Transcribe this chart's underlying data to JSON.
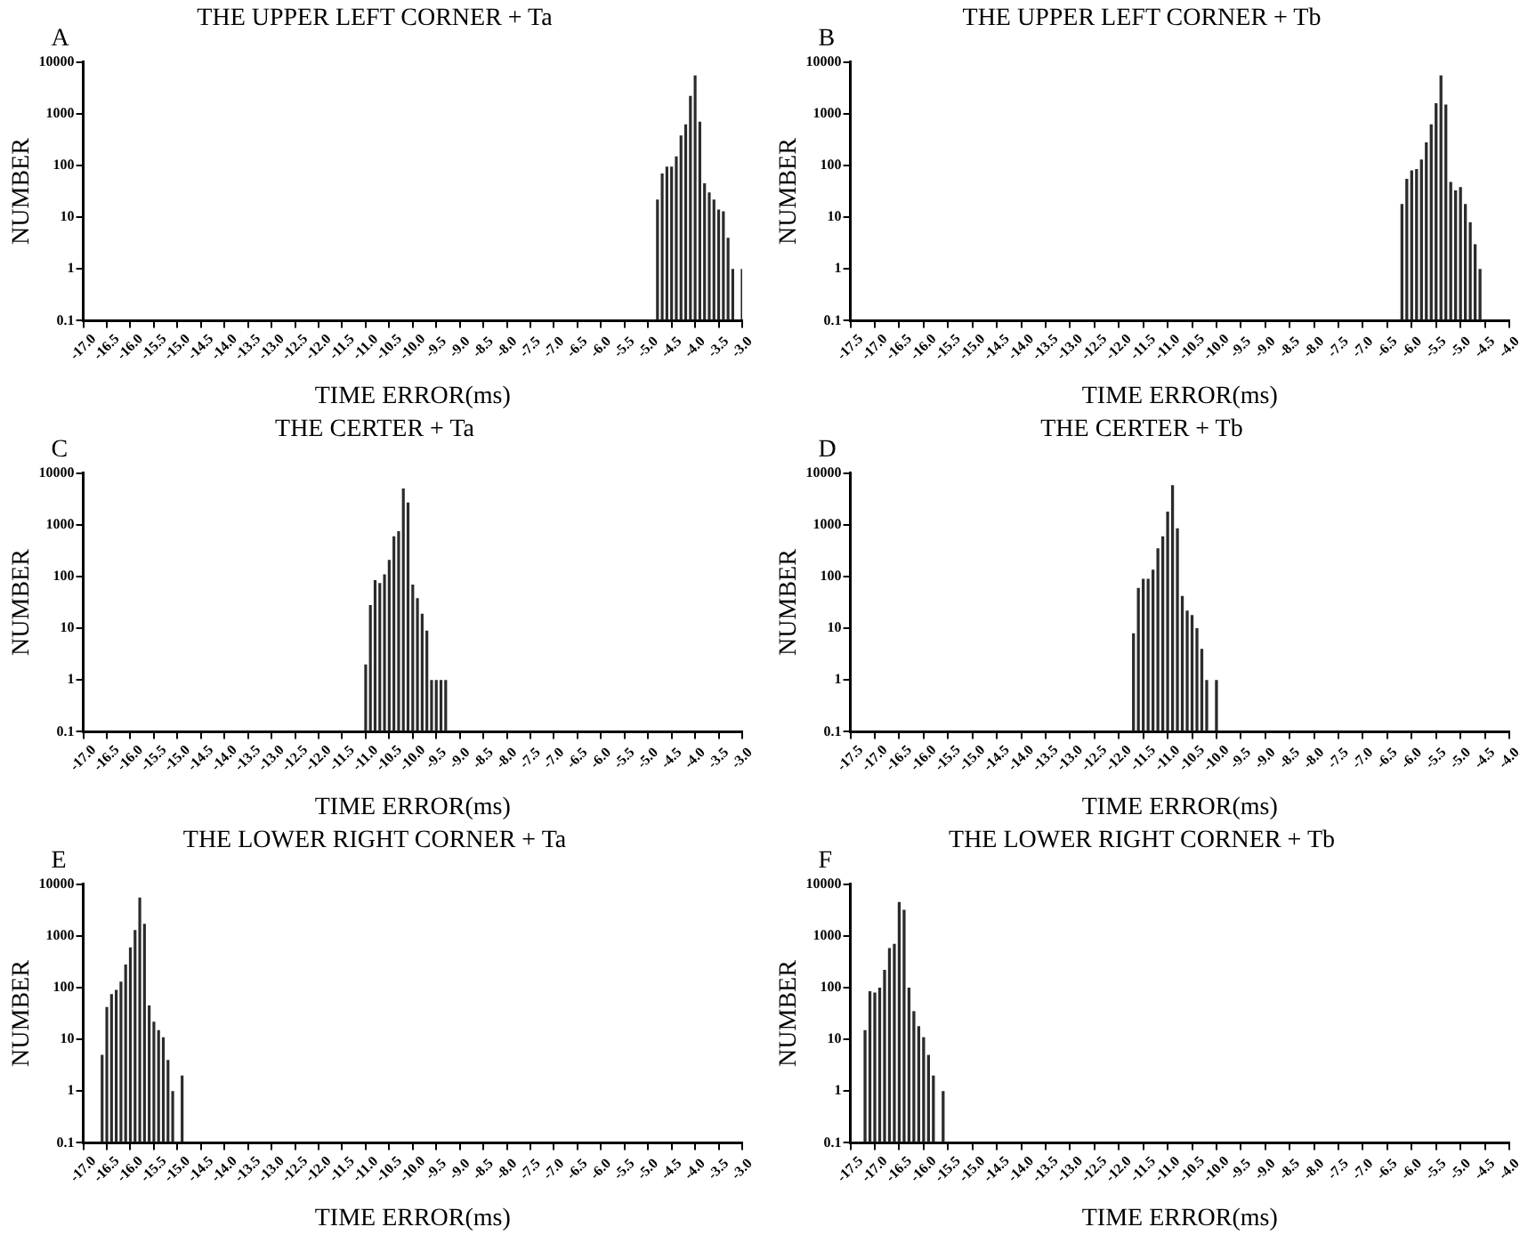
{
  "chart_data": [
    {
      "type": "bar",
      "title": "THE UPPER LEFT CORNER + Ta",
      "xlabel": "TIME ERROR(ms)",
      "ylabel": "NUMBER",
      "annotations": [
        "A"
      ],
      "color": "#2b2b2b",
      "log": "y",
      "grid": false,
      "x": [
        -4.8,
        -4.7,
        -4.6,
        -4.5,
        -4.4,
        -4.3,
        -4.2,
        -4.1,
        -4.0,
        -3.9,
        -3.8,
        -3.7,
        -3.6,
        -3.5,
        -3.4,
        -3.3,
        -3.2,
        -3.0
      ],
      "values": [
        22,
        70,
        95,
        95,
        150,
        380,
        620,
        2200,
        5500,
        700,
        45,
        30,
        22,
        14,
        13,
        4,
        1,
        1
      ],
      "xlim": [
        -17.0,
        -3.0
      ],
      "ylim": [
        0.1,
        10000
      ],
      "yticks": [
        0.1,
        1,
        10,
        100,
        1000,
        10000
      ],
      "xticks": [
        {
          "value": -17,
          "label": "-17.0"
        },
        {
          "value": -16.5,
          "label": "-16.5"
        },
        {
          "value": -16,
          "label": "-16.0"
        },
        {
          "value": -15.5,
          "label": "-15.5"
        },
        {
          "value": -15,
          "label": "-15.0"
        },
        {
          "value": -14.5,
          "label": "-14.5"
        },
        {
          "value": -14,
          "label": "-14.0"
        },
        {
          "value": -13.5,
          "label": "-13.5"
        },
        {
          "value": -13,
          "label": "-13.0"
        },
        {
          "value": -12.5,
          "label": "-12.5"
        },
        {
          "value": -12,
          "label": "-12.0"
        },
        {
          "value": -11.5,
          "label": "-11.5"
        },
        {
          "value": -11,
          "label": "-11.0"
        },
        {
          "value": -10.5,
          "label": "-10.5"
        },
        {
          "value": -10,
          "label": "-10.0"
        },
        {
          "value": -9.5,
          "label": "-9.5"
        },
        {
          "value": -9,
          "label": "-9.0"
        },
        {
          "value": -8.5,
          "label": "-8.5"
        },
        {
          "value": -8,
          "label": "-8.0"
        },
        {
          "value": -7.5,
          "label": "-7.5"
        },
        {
          "value": -7,
          "label": "-7.0"
        },
        {
          "value": -6.5,
          "label": "-6.5"
        },
        {
          "value": -6,
          "label": "-6.0"
        },
        {
          "value": -5.5,
          "label": "-5.5"
        },
        {
          "value": -5,
          "label": "-5.0"
        },
        {
          "value": -4.5,
          "label": "-4.5"
        },
        {
          "value": -4,
          "label": "-4.0"
        },
        {
          "value": -3.5,
          "label": "-3.5"
        },
        {
          "value": -3,
          "label": "-3.0"
        }
      ]
    },
    {
      "type": "bar",
      "title": "THE UPPER LEFT CORNER + Tb",
      "xlabel": "TIME ERROR(ms)",
      "ylabel": "NUMBER",
      "annotations": [
        "B"
      ],
      "color": "#2b2b2b",
      "log": "y",
      "grid": false,
      "x": [
        -6.2,
        -6.1,
        -6.0,
        -5.9,
        -5.8,
        -5.7,
        -5.6,
        -5.5,
        -5.4,
        -5.3,
        -5.2,
        -5.1,
        -5.0,
        -4.9,
        -4.8,
        -4.7,
        -4.6
      ],
      "values": [
        18,
        55,
        80,
        85,
        130,
        280,
        620,
        1600,
        5500,
        1500,
        48,
        33,
        38,
        18,
        8,
        3,
        1
      ],
      "xlim": [
        -17.5,
        -4.0
      ],
      "ylim": [
        0.1,
        10000
      ],
      "yticks": [
        0.1,
        1,
        10,
        100,
        1000,
        10000
      ],
      "xticks": [
        {
          "value": -17.5,
          "label": "-17.5"
        },
        {
          "value": -17,
          "label": "-17.0"
        },
        {
          "value": -16.5,
          "label": "-16.5"
        },
        {
          "value": -16,
          "label": "-16.0"
        },
        {
          "value": -15.5,
          "label": "-15.5"
        },
        {
          "value": -15,
          "label": "-15.0"
        },
        {
          "value": -14.5,
          "label": "-14.5"
        },
        {
          "value": -14,
          "label": "-14.0"
        },
        {
          "value": -13.5,
          "label": "-13.5"
        },
        {
          "value": -13,
          "label": "-13.0"
        },
        {
          "value": -12.5,
          "label": "-12.5"
        },
        {
          "value": -12,
          "label": "-12.0"
        },
        {
          "value": -11.5,
          "label": "-11.5"
        },
        {
          "value": -11,
          "label": "-11.0"
        },
        {
          "value": -10.5,
          "label": "-10.5"
        },
        {
          "value": -10,
          "label": "-10.0"
        },
        {
          "value": -9.5,
          "label": "-9.5"
        },
        {
          "value": -9,
          "label": "-9.0"
        },
        {
          "value": -8.5,
          "label": "-8.5"
        },
        {
          "value": -8,
          "label": "-8.0"
        },
        {
          "value": -7.5,
          "label": "-7.5"
        },
        {
          "value": -7,
          "label": "-7.0"
        },
        {
          "value": -6.5,
          "label": "-6.5"
        },
        {
          "value": -6,
          "label": "-6.0"
        },
        {
          "value": -5.5,
          "label": "-5.5"
        },
        {
          "value": -5,
          "label": "-5.0"
        },
        {
          "value": -4.5,
          "label": "-4.5"
        },
        {
          "value": -4,
          "label": "-4.0"
        }
      ]
    },
    {
      "type": "bar",
      "title": "THE CERTER + Ta",
      "xlabel": "TIME ERROR(ms)",
      "ylabel": "NUMBER",
      "annotations": [
        "C"
      ],
      "color": "#2b2b2b",
      "log": "y",
      "grid": false,
      "x": [
        -11.0,
        -10.9,
        -10.8,
        -10.7,
        -10.6,
        -10.5,
        -10.4,
        -10.3,
        -10.2,
        -10.1,
        -10.0,
        -9.9,
        -9.8,
        -9.7,
        -9.6,
        -9.5,
        -9.4,
        -9.3
      ],
      "values": [
        2,
        28,
        85,
        75,
        110,
        210,
        600,
        750,
        5000,
        2700,
        70,
        38,
        19,
        9,
        1,
        1,
        1,
        1
      ],
      "xlim": [
        -17.0,
        -3.0
      ],
      "ylim": [
        0.1,
        10000
      ],
      "yticks": [
        0.1,
        1,
        10,
        100,
        1000,
        10000
      ],
      "xticks": [
        {
          "value": -17,
          "label": "-17.0"
        },
        {
          "value": -16.5,
          "label": "-16.5"
        },
        {
          "value": -16,
          "label": "-16.0"
        },
        {
          "value": -15.5,
          "label": "-15.5"
        },
        {
          "value": -15,
          "label": "-15.0"
        },
        {
          "value": -14.5,
          "label": "-14.5"
        },
        {
          "value": -14,
          "label": "-14.0"
        },
        {
          "value": -13.5,
          "label": "-13.5"
        },
        {
          "value": -13,
          "label": "-13.0"
        },
        {
          "value": -12.5,
          "label": "-12.5"
        },
        {
          "value": -12,
          "label": "-12.0"
        },
        {
          "value": -11.5,
          "label": "-11.5"
        },
        {
          "value": -11,
          "label": "-11.0"
        },
        {
          "value": -10.5,
          "label": "-10.5"
        },
        {
          "value": -10,
          "label": "-10.0"
        },
        {
          "value": -9.5,
          "label": "-9.5"
        },
        {
          "value": -9,
          "label": "-9.0"
        },
        {
          "value": -8.5,
          "label": "-8.5"
        },
        {
          "value": -8,
          "label": "-8.0"
        },
        {
          "value": -7.5,
          "label": "-7.5"
        },
        {
          "value": -7,
          "label": "-7.0"
        },
        {
          "value": -6.5,
          "label": "-6.5"
        },
        {
          "value": -6,
          "label": "-6.0"
        },
        {
          "value": -5.5,
          "label": "-5.5"
        },
        {
          "value": -5,
          "label": "-5.0"
        },
        {
          "value": -4.5,
          "label": "-4.5"
        },
        {
          "value": -4,
          "label": "-4.0"
        },
        {
          "value": -3.5,
          "label": "-3.5"
        },
        {
          "value": -3,
          "label": "-3.0"
        }
      ]
    },
    {
      "type": "bar",
      "title": "THE CERTER + Tb",
      "xlabel": "TIME ERROR(ms)",
      "ylabel": "NUMBER",
      "annotations": [
        "D"
      ],
      "color": "#2b2b2b",
      "log": "y",
      "grid": false,
      "x": [
        -11.7,
        -11.6,
        -11.5,
        -11.4,
        -11.3,
        -11.2,
        -11.1,
        -11.0,
        -10.9,
        -10.8,
        -10.7,
        -10.6,
        -10.5,
        -10.4,
        -10.3,
        -10.2,
        -10.0
      ],
      "values": [
        8,
        60,
        90,
        90,
        135,
        350,
        600,
        1800,
        5800,
        850,
        42,
        22,
        18,
        10,
        4,
        1,
        1
      ],
      "xlim": [
        -17.5,
        -4.0
      ],
      "ylim": [
        0.1,
        10000
      ],
      "yticks": [
        0.1,
        1,
        10,
        100,
        1000,
        10000
      ],
      "xticks": [
        {
          "value": -17.5,
          "label": "-17.5"
        },
        {
          "value": -17,
          "label": "-17.0"
        },
        {
          "value": -16.5,
          "label": "-16.5"
        },
        {
          "value": -16,
          "label": "-16.0"
        },
        {
          "value": -15.5,
          "label": "-15.5"
        },
        {
          "value": -15,
          "label": "-15.0"
        },
        {
          "value": -14.5,
          "label": "-14.5"
        },
        {
          "value": -14,
          "label": "-14.0"
        },
        {
          "value": -13.5,
          "label": "-13.5"
        },
        {
          "value": -13,
          "label": "-13.0"
        },
        {
          "value": -12.5,
          "label": "-12.5"
        },
        {
          "value": -12,
          "label": "-12.0"
        },
        {
          "value": -11.5,
          "label": "-11.5"
        },
        {
          "value": -11,
          "label": "-11.0"
        },
        {
          "value": -10.5,
          "label": "-10.5"
        },
        {
          "value": -10,
          "label": "-10.0"
        },
        {
          "value": -9.5,
          "label": "-9.5"
        },
        {
          "value": -9,
          "label": "-9.0"
        },
        {
          "value": -8.5,
          "label": "-8.5"
        },
        {
          "value": -8,
          "label": "-8.0"
        },
        {
          "value": -7.5,
          "label": "-7.5"
        },
        {
          "value": -7,
          "label": "-7.0"
        },
        {
          "value": -6.5,
          "label": "-6.5"
        },
        {
          "value": -6,
          "label": "-6.0"
        },
        {
          "value": -5.5,
          "label": "-5.5"
        },
        {
          "value": -5,
          "label": "-5.0"
        },
        {
          "value": -4.5,
          "label": "-4.5"
        },
        {
          "value": -4,
          "label": "-4.0"
        }
      ]
    },
    {
      "type": "bar",
      "title": "THE LOWER RIGHT CORNER + Ta",
      "xlabel": "TIME ERROR(ms)",
      "ylabel": "NUMBER",
      "annotations": [
        "E"
      ],
      "color": "#2b2b2b",
      "log": "y",
      "grid": false,
      "x": [
        -16.6,
        -16.5,
        -16.4,
        -16.3,
        -16.2,
        -16.1,
        -16.0,
        -15.9,
        -15.8,
        -15.7,
        -15.6,
        -15.5,
        -15.4,
        -15.3,
        -15.2,
        -15.1,
        -14.9
      ],
      "values": [
        5,
        42,
        75,
        90,
        130,
        280,
        600,
        1300,
        5500,
        1700,
        45,
        22,
        15,
        11,
        4,
        1,
        2
      ],
      "xlim": [
        -17.0,
        -3.0
      ],
      "ylim": [
        0.1,
        10000
      ],
      "yticks": [
        0.1,
        1,
        10,
        100,
        1000,
        10000
      ],
      "xticks": [
        {
          "value": -17,
          "label": "-17.0"
        },
        {
          "value": -16.5,
          "label": "-16.5"
        },
        {
          "value": -16,
          "label": "-16.0"
        },
        {
          "value": -15.5,
          "label": "-15.5"
        },
        {
          "value": -15,
          "label": "-15.0"
        },
        {
          "value": -14.5,
          "label": "-14.5"
        },
        {
          "value": -14,
          "label": "-14.0"
        },
        {
          "value": -13.5,
          "label": "-13.5"
        },
        {
          "value": -13,
          "label": "-13.0"
        },
        {
          "value": -12.5,
          "label": "-12.5"
        },
        {
          "value": -12,
          "label": "-12.0"
        },
        {
          "value": -11.5,
          "label": "-11.5"
        },
        {
          "value": -11,
          "label": "-11.0"
        },
        {
          "value": -10.5,
          "label": "-10.5"
        },
        {
          "value": -10,
          "label": "-10.0"
        },
        {
          "value": -9.5,
          "label": "-9.5"
        },
        {
          "value": -9,
          "label": "-9.0"
        },
        {
          "value": -8.5,
          "label": "-8.5"
        },
        {
          "value": -8,
          "label": "-8.0"
        },
        {
          "value": -7.5,
          "label": "-7.5"
        },
        {
          "value": -7,
          "label": "-7.0"
        },
        {
          "value": -6.5,
          "label": "-6.5"
        },
        {
          "value": -6,
          "label": "-6.0"
        },
        {
          "value": -5.5,
          "label": "-5.5"
        },
        {
          "value": -5,
          "label": "-5.0"
        },
        {
          "value": -4.5,
          "label": "-4.5"
        },
        {
          "value": -4,
          "label": "-4.0"
        },
        {
          "value": -3.5,
          "label": "-3.5"
        },
        {
          "value": -3,
          "label": "-3.0"
        }
      ]
    },
    {
      "type": "bar",
      "title": "THE LOWER RIGHT CORNER + Tb",
      "xlabel": "TIME ERROR(ms)",
      "ylabel": "NUMBER",
      "annotations": [
        "F"
      ],
      "color": "#2b2b2b",
      "log": "y",
      "grid": false,
      "x": [
        -17.2,
        -17.1,
        -17.0,
        -16.9,
        -16.8,
        -16.7,
        -16.6,
        -16.5,
        -16.4,
        -16.3,
        -16.2,
        -16.1,
        -16.0,
        -15.9,
        -15.8,
        -15.6
      ],
      "values": [
        15,
        85,
        80,
        100,
        220,
        580,
        700,
        4500,
        3200,
        100,
        35,
        18,
        11,
        5,
        2,
        1
      ],
      "xlim": [
        -17.5,
        -4.0
      ],
      "ylim": [
        0.1,
        10000
      ],
      "yticks": [
        0.1,
        1,
        10,
        100,
        1000,
        10000
      ],
      "xticks": [
        {
          "value": -17.5,
          "label": "-17.5"
        },
        {
          "value": -17,
          "label": "-17.0"
        },
        {
          "value": -16.5,
          "label": "-16.5"
        },
        {
          "value": -16,
          "label": "-16.0"
        },
        {
          "value": -15.5,
          "label": "-15.5"
        },
        {
          "value": -15,
          "label": "-15.0"
        },
        {
          "value": -14.5,
          "label": "-14.5"
        },
        {
          "value": -14,
          "label": "-14.0"
        },
        {
          "value": -13.5,
          "label": "-13.5"
        },
        {
          "value": -13,
          "label": "-13.0"
        },
        {
          "value": -12.5,
          "label": "-12.5"
        },
        {
          "value": -12,
          "label": "-12.0"
        },
        {
          "value": -11.5,
          "label": "-11.5"
        },
        {
          "value": -11,
          "label": "-11.0"
        },
        {
          "value": -10.5,
          "label": "-10.5"
        },
        {
          "value": -10,
          "label": "-10.0"
        },
        {
          "value": -9.5,
          "label": "-9.5"
        },
        {
          "value": -9,
          "label": "-9.0"
        },
        {
          "value": -8.5,
          "label": "-8.5"
        },
        {
          "value": -8,
          "label": "-8.0"
        },
        {
          "value": -7.5,
          "label": "-7.5"
        },
        {
          "value": -7,
          "label": "-7.0"
        },
        {
          "value": -6.5,
          "label": "-6.5"
        },
        {
          "value": -6,
          "label": "-6.0"
        },
        {
          "value": -5.5,
          "label": "-5.5"
        },
        {
          "value": -5,
          "label": "-5.0"
        },
        {
          "value": -4.5,
          "label": "-4.5"
        },
        {
          "value": -4,
          "label": "-4.0"
        }
      ]
    }
  ]
}
